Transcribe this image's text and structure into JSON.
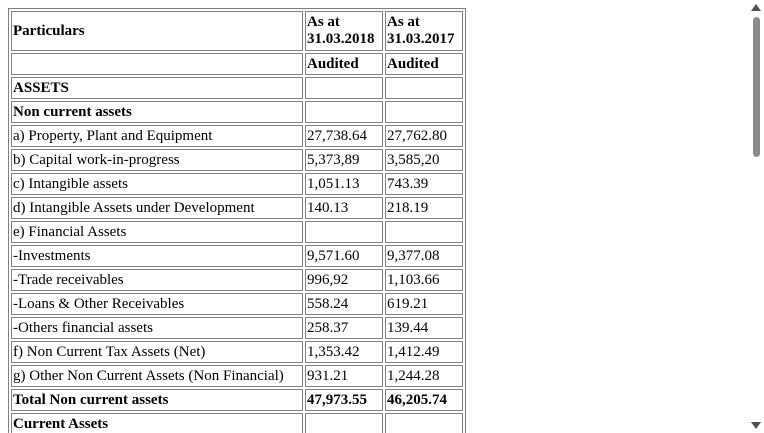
{
  "header": {
    "particulars": "Particulars",
    "col1_line1": "As at",
    "col1_line2": "31.03.2018",
    "col2_line1": "As at",
    "col2_line2": "31.03.2017",
    "audited1": "Audited",
    "audited2": "Audited"
  },
  "rows": [
    {
      "label": "ASSETS",
      "v1": "",
      "v2": "",
      "bold": true
    },
    {
      "label": "Non current assets",
      "v1": "",
      "v2": "",
      "bold": true
    },
    {
      "label": "a) Property, Plant and Equipment",
      "v1": "27,738.64",
      "v2": "27,762.80",
      "bold": false
    },
    {
      "label": "b) Capital work-in-progress",
      "v1": "5,373,89",
      "v2": "3,585,20",
      "bold": false
    },
    {
      "label": "c) Intangible assets",
      "v1": "1,051.13",
      "v2": "743.39",
      "bold": false
    },
    {
      "label": "d) Intangible Assets under Development",
      "v1": "140.13",
      "v2": "218.19",
      "bold": false
    },
    {
      "label": "e) Financial Assets",
      "v1": "",
      "v2": "",
      "bold": false
    },
    {
      "label": "-Investments",
      "v1": "9,571.60",
      "v2": "9,377.08",
      "bold": false
    },
    {
      "label": "-Trade receivables",
      "v1": "996,92",
      "v2": "1,103.66",
      "bold": false
    },
    {
      "label": "-Loans & Other Receivables",
      "v1": "558.24",
      "v2": "619.21",
      "bold": false
    },
    {
      "label": "-Others financial assets",
      "v1": "258.37",
      "v2": "139.44",
      "bold": false
    },
    {
      "label": "f) Non Current Tax Assets (Net)",
      "v1": "1,353.42",
      "v2": "1,412.49",
      "bold": false
    },
    {
      "label": "g) Other Non Current Assets (Non Financial)",
      "v1": "931.21",
      "v2": "1,244.28",
      "bold": false
    },
    {
      "label": "Total Non current assets",
      "v1": "47,973.55",
      "v2": "46,205.74",
      "bold": true
    },
    {
      "label": "Current Assets",
      "v1": "",
      "v2": "",
      "bold": true
    }
  ]
}
